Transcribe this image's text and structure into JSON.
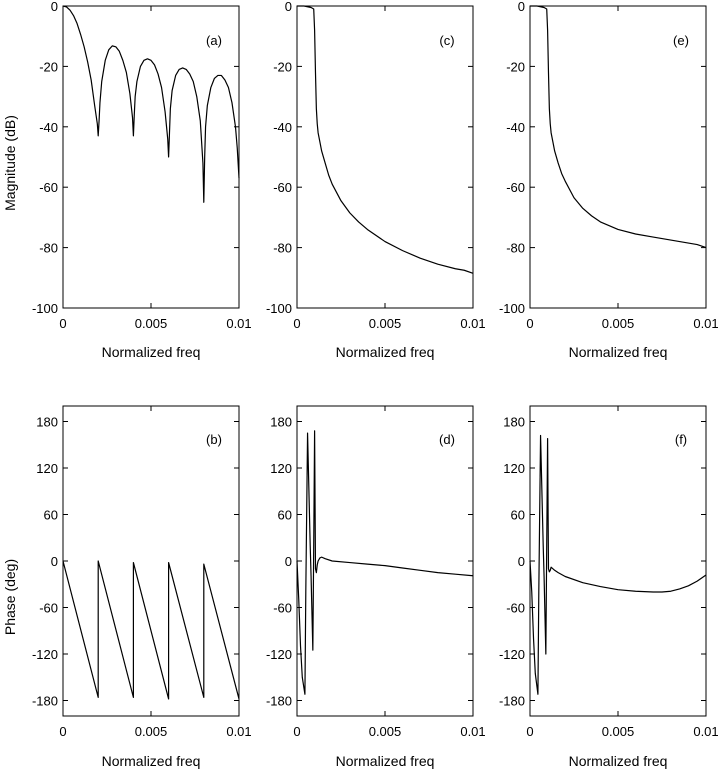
{
  "chart_data": [
    {
      "id": "a",
      "type": "line",
      "panel_label": "(a)",
      "xlabel": "Normalized freq",
      "ylabel": "Magnitude (dB)",
      "xlim": [
        0,
        0.01
      ],
      "ylim": [
        -100,
        0
      ],
      "xticks": [
        0,
        0.005,
        0.01
      ],
      "xtick_labels": [
        "0",
        "0.005",
        "0.01"
      ],
      "yticks": [
        0,
        -20,
        -40,
        -60,
        -80,
        -100
      ],
      "ytick_labels": [
        "0",
        "-20",
        "-40",
        "-60",
        "-80",
        "-100"
      ],
      "series": [
        {
          "name": "magnitude",
          "x": [
            0,
            0.0002,
            0.0004,
            0.0006,
            0.0008,
            0.001,
            0.0012,
            0.0014,
            0.0016,
            0.0018,
            0.00195,
            0.002,
            0.00205,
            0.0021,
            0.0022,
            0.0024,
            0.0026,
            0.0028,
            0.003,
            0.0032,
            0.0034,
            0.0036,
            0.0038,
            0.00395,
            0.004,
            0.00405,
            0.0041,
            0.0042,
            0.0044,
            0.0046,
            0.0048,
            0.005,
            0.0052,
            0.0054,
            0.0056,
            0.0058,
            0.00595,
            0.006,
            0.00605,
            0.0061,
            0.0062,
            0.0064,
            0.0066,
            0.0068,
            0.007,
            0.0072,
            0.0074,
            0.0076,
            0.0078,
            0.00795,
            0.008,
            0.00805,
            0.0081,
            0.0082,
            0.0084,
            0.0086,
            0.0088,
            0.009,
            0.0092,
            0.0094,
            0.0096,
            0.0098,
            0.0099,
            0.01
          ],
          "y": [
            0,
            -0.3,
            -1.4,
            -3.2,
            -5.8,
            -9.4,
            -13.5,
            -18.5,
            -24.5,
            -33,
            -39,
            -43,
            -38,
            -32,
            -25,
            -18,
            -14.5,
            -13.2,
            -13.5,
            -15,
            -18,
            -22,
            -29,
            -37,
            -43,
            -36,
            -30,
            -25,
            -20,
            -18,
            -17.5,
            -18,
            -19.5,
            -22.5,
            -27,
            -35,
            -44,
            -50,
            -42,
            -34,
            -28,
            -23,
            -21,
            -20.5,
            -21,
            -22.5,
            -25,
            -30,
            -38,
            -52,
            -65,
            -50,
            -40,
            -33,
            -27,
            -24,
            -23,
            -23,
            -24.5,
            -27,
            -32,
            -40,
            -47,
            -57
          ]
        }
      ]
    },
    {
      "id": "b",
      "type": "line",
      "panel_label": "(b)",
      "xlabel": "Normalized freq",
      "ylabel": "Phase (deg)",
      "xlim": [
        0,
        0.01
      ],
      "ylim": [
        -200,
        200
      ],
      "xticks": [
        0,
        0.005,
        0.01
      ],
      "xtick_labels": [
        "0",
        "0.005",
        "0.01"
      ],
      "yticks": [
        180,
        120,
        60,
        0,
        -60,
        -120,
        -180
      ],
      "ytick_labels": [
        "180",
        "120",
        "60",
        "0",
        "-60",
        "-120",
        "-180"
      ],
      "series": [
        {
          "name": "phase",
          "x": [
            0,
            0.002,
            0.002,
            0.004,
            0.004,
            0.006,
            0.006,
            0.008,
            0.008,
            0.01
          ],
          "y": [
            0,
            -176,
            0,
            -176,
            -2,
            -178,
            -2,
            -176,
            -4,
            -178
          ]
        }
      ]
    },
    {
      "id": "c",
      "type": "line",
      "panel_label": "(c)",
      "xlabel": "Normalized freq",
      "ylabel": "",
      "xlim": [
        0,
        0.01
      ],
      "ylim": [
        -100,
        0
      ],
      "xticks": [
        0,
        0.005,
        0.01
      ],
      "xtick_labels": [
        "0",
        "0.005",
        "0.01"
      ],
      "yticks": [
        0,
        -20,
        -40,
        -60,
        -80,
        -100
      ],
      "ytick_labels": [
        "0",
        "-20",
        "-40",
        "-60",
        "-80",
        "-100"
      ],
      "series": [
        {
          "name": "magnitude",
          "x": [
            0,
            0.0004,
            0.0008,
            0.00095,
            0.001,
            0.00105,
            0.0011,
            0.00115,
            0.0012,
            0.0013,
            0.0014,
            0.0016,
            0.0018,
            0.002,
            0.0025,
            0.003,
            0.0035,
            0.004,
            0.005,
            0.006,
            0.007,
            0.008,
            0.009,
            0.0095,
            0.01
          ],
          "y": [
            0,
            0,
            -0.5,
            -1,
            -8,
            -22,
            -34,
            -39,
            -42,
            -45,
            -48,
            -52,
            -56,
            -59,
            -64.5,
            -68.5,
            -71.5,
            -74,
            -78,
            -81,
            -83.5,
            -85.5,
            -87,
            -87.5,
            -88.5
          ]
        }
      ]
    },
    {
      "id": "d",
      "type": "line",
      "panel_label": "(d)",
      "xlabel": "Normalized freq",
      "ylabel": "",
      "xlim": [
        0,
        0.01
      ],
      "ylim": [
        -200,
        200
      ],
      "xticks": [
        0,
        0.005,
        0.01
      ],
      "xtick_labels": [
        "0",
        "0.005",
        "0.01"
      ],
      "yticks": [
        180,
        120,
        60,
        0,
        -60,
        -120,
        -180
      ],
      "ytick_labels": [
        "180",
        "120",
        "60",
        "0",
        "-60",
        "-120",
        "-180"
      ],
      "series": [
        {
          "name": "phase",
          "x": [
            0,
            0.0001,
            0.0002,
            0.0003,
            0.00045,
            0.0005,
            0.0006,
            0.00075,
            0.0008,
            0.0009,
            0.00095,
            0.001,
            0.00105,
            0.0011,
            0.00115,
            0.0012,
            0.0013,
            0.0014,
            0.0016,
            0.002,
            0.003,
            0.004,
            0.005,
            0.006,
            0.007,
            0.008,
            0.009,
            0.01
          ],
          "y": [
            0,
            -50,
            -110,
            -150,
            -172,
            -40,
            165,
            20,
            -20,
            -115,
            20,
            168,
            -10,
            -15,
            -5,
            0,
            4,
            5,
            3,
            0,
            -2,
            -4,
            -6,
            -9,
            -12,
            -15,
            -17,
            -19
          ]
        }
      ]
    },
    {
      "id": "e",
      "type": "line",
      "panel_label": "(e)",
      "xlabel": "Normalized freq",
      "ylabel": "",
      "xlim": [
        0,
        0.01
      ],
      "ylim": [
        -100,
        0
      ],
      "xticks": [
        0,
        0.005,
        0.01
      ],
      "xtick_labels": [
        "0",
        "0.005",
        "0.01"
      ],
      "yticks": [
        0,
        -20,
        -40,
        -60,
        -80,
        -100
      ],
      "ytick_labels": [
        "0",
        "-20",
        "-40",
        "-60",
        "-80",
        "-100"
      ],
      "series": [
        {
          "name": "magnitude",
          "x": [
            0,
            0.0004,
            0.0008,
            0.00095,
            0.001,
            0.00105,
            0.0011,
            0.00115,
            0.0012,
            0.0013,
            0.0014,
            0.0016,
            0.0018,
            0.002,
            0.0025,
            0.003,
            0.0035,
            0.004,
            0.005,
            0.006,
            0.007,
            0.008,
            0.0085,
            0.009,
            0.0095,
            0.01
          ],
          "y": [
            0,
            0,
            -0.5,
            -1,
            -8,
            -22,
            -34,
            -39,
            -42,
            -45,
            -48,
            -52,
            -55.5,
            -58,
            -63.5,
            -67,
            -69.5,
            -71.5,
            -74,
            -75.5,
            -76.5,
            -77.5,
            -78,
            -78.5,
            -79,
            -80
          ]
        }
      ]
    },
    {
      "id": "f",
      "type": "line",
      "panel_label": "(f)",
      "xlabel": "Normalized freq",
      "ylabel": "",
      "xlim": [
        0,
        0.01
      ],
      "ylim": [
        -200,
        200
      ],
      "xticks": [
        0,
        0.005,
        0.01
      ],
      "xtick_labels": [
        "0",
        "0.005",
        "0.01"
      ],
      "yticks": [
        180,
        120,
        60,
        0,
        -60,
        -120,
        -180
      ],
      "ytick_labels": [
        "180",
        "120",
        "60",
        "0",
        "-60",
        "-120",
        "-180"
      ],
      "series": [
        {
          "name": "phase",
          "x": [
            0,
            0.0001,
            0.0002,
            0.0003,
            0.00045,
            0.0005,
            0.0006,
            0.00075,
            0.0008,
            0.0009,
            0.00095,
            0.001,
            0.00105,
            0.0011,
            0.00115,
            0.0012,
            0.0014,
            0.0016,
            0.002,
            0.003,
            0.004,
            0.005,
            0.006,
            0.007,
            0.0075,
            0.008,
            0.0085,
            0.009,
            0.0095,
            0.01
          ],
          "y": [
            0,
            -40,
            -100,
            -145,
            -172,
            -40,
            162,
            20,
            -20,
            -120,
            20,
            158,
            -10,
            -14,
            -12,
            -8,
            -12,
            -15,
            -20,
            -28,
            -33,
            -37,
            -39,
            -40,
            -40,
            -39,
            -36,
            -32,
            -26,
            -18
          ]
        }
      ]
    }
  ]
}
